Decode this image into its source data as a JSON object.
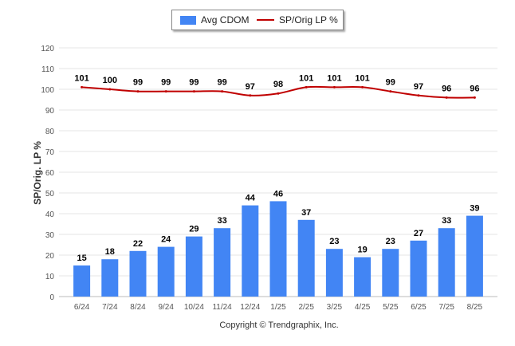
{
  "chart_data": {
    "type": "bar",
    "categories": [
      "6/24",
      "7/24",
      "8/24",
      "9/24",
      "10/24",
      "11/24",
      "12/24",
      "1/25",
      "2/25",
      "3/25",
      "4/25",
      "5/25",
      "6/25",
      "7/25",
      "8/25"
    ],
    "series": [
      {
        "name": "Avg CDOM",
        "type": "bar",
        "values": [
          15,
          18,
          22,
          24,
          29,
          33,
          44,
          46,
          37,
          23,
          19,
          23,
          27,
          33,
          39
        ]
      },
      {
        "name": "SP/Orig LP %",
        "type": "line",
        "values": [
          101,
          100,
          99,
          99,
          99,
          99,
          97,
          98,
          101,
          101,
          101,
          99,
          97,
          96,
          96
        ]
      }
    ],
    "ylabel": "SP/Orig. LP %",
    "ylim": [
      0,
      120
    ],
    "yticks": [
      0,
      10,
      20,
      30,
      40,
      50,
      60,
      70,
      80,
      90,
      100,
      110,
      120
    ],
    "grid": true,
    "legend_position": "top-center"
  },
  "colors": {
    "bar": "#4285f4",
    "line": "#c00000",
    "grid": "#e6e6e6",
    "axis_text": "#555555"
  },
  "credit": "Copyright © Trendgraphix, Inc."
}
